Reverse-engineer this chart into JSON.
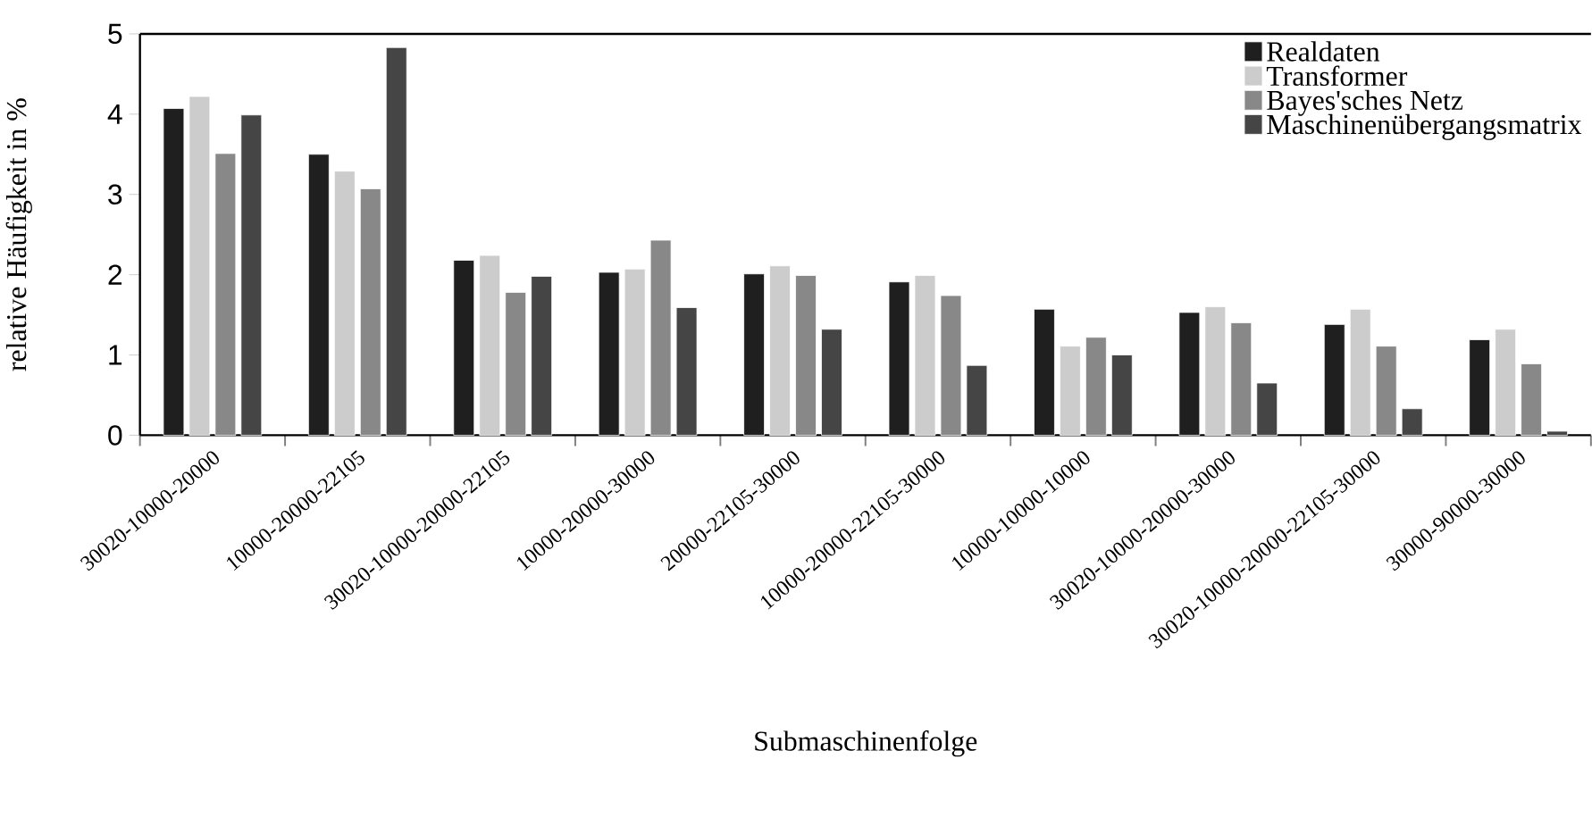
{
  "chart_data": {
    "type": "bar",
    "xlabel": "Submaschinenfolge",
    "ylabel": "relative Häufigkeit in %",
    "categories": [
      "30020-10000-20000",
      "10000-20000-22105",
      "30020-10000-20000-22105",
      "10000-20000-30000",
      "20000-22105-30000",
      "10000-20000-22105-30000",
      "10000-10000-10000",
      "30020-10000-20000-30000",
      "30020-10000-20000-22105-30000",
      "30000-90000-30000"
    ],
    "series": [
      {
        "name": "Realdaten",
        "color": "#1f1f1f",
        "values": [
          4.07,
          3.5,
          2.18,
          2.03,
          2.01,
          1.91,
          1.57,
          1.53,
          1.38,
          1.19
        ]
      },
      {
        "name": "Transformer",
        "color": "#cccccc",
        "values": [
          4.22,
          3.29,
          2.24,
          2.07,
          2.11,
          1.99,
          1.11,
          1.6,
          1.57,
          1.32
        ]
      },
      {
        "name": "Bayes'sches Netz",
        "color": "#888888",
        "values": [
          3.51,
          3.07,
          1.78,
          2.43,
          1.99,
          1.74,
          1.22,
          1.4,
          1.11,
          0.89
        ]
      },
      {
        "name": "Maschinenübergangsmatrix",
        "color": "#454545",
        "values": [
          3.99,
          4.83,
          1.98,
          1.59,
          1.32,
          0.87,
          1.0,
          0.65,
          0.33,
          0.05
        ]
      }
    ],
    "ylim": [
      0,
      5
    ],
    "yticks": [
      0,
      1,
      2,
      3,
      4,
      5
    ],
    "grid": false,
    "legend": "top right"
  }
}
